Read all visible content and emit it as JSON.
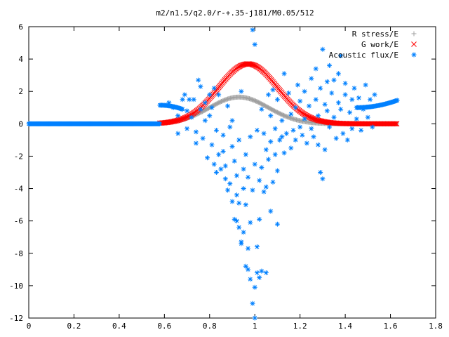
{
  "chart_data": {
    "type": "scatter",
    "title": "m2/n1.5/q2.0/r-+.35-j181/M0.05/512",
    "xlabel": "",
    "ylabel": "",
    "xlim": [
      0,
      1.8
    ],
    "ylim": [
      -12,
      6
    ],
    "xticks": [
      "0",
      "0.2",
      "0.4",
      "0.6",
      "0.8",
      "1",
      "1.2",
      "1.4",
      "1.6",
      "1.8"
    ],
    "yticks": [
      "6",
      "4",
      "2",
      "0",
      "-2",
      "-4",
      "-6",
      "-8",
      "-10",
      "-12"
    ],
    "grid": false,
    "legend_position": "top-right",
    "series": [
      {
        "name": "R stress/E",
        "marker": "plus",
        "color": "#a0a0a0",
        "curve": {
          "kind": "gaussian",
          "x_start": 0.58,
          "x_end": 1.63,
          "step": 0.004,
          "amplitude": 1.65,
          "center": 0.93,
          "sigma": 0.13,
          "baseline": 0.0
        }
      },
      {
        "name": "G work/E",
        "marker": "cross",
        "color": "#ff0000",
        "curve": {
          "kind": "gaussian",
          "x_start": 0.58,
          "x_end": 1.63,
          "step": 0.004,
          "amplitude": 3.7,
          "center": 0.97,
          "sigma": 0.13,
          "baseline": 0.0
        }
      },
      {
        "name": "Acoustic flux/E",
        "marker": "star",
        "color": "#0080ff",
        "segments": [
          {
            "x_start": 0.0,
            "x_end": 0.58,
            "step": 0.003,
            "y": 0.0
          },
          {
            "x_start": 0.58,
            "x_end": 0.68,
            "step": 0.004,
            "y_start": 1.15,
            "y_end": 0.9
          },
          {
            "x_start": 1.45,
            "x_end": 1.63,
            "step": 0.004,
            "y_start": 1.0,
            "y_end": 1.45
          }
        ],
        "points": [
          [
            0.62,
            1.3
          ],
          [
            0.64,
            1.0
          ],
          [
            0.66,
            0.5
          ],
          [
            0.66,
            -0.6
          ],
          [
            0.68,
            1.5
          ],
          [
            0.69,
            1.8
          ],
          [
            0.7,
            0.8
          ],
          [
            0.7,
            -0.3
          ],
          [
            0.71,
            1.5
          ],
          [
            0.72,
            0.4
          ],
          [
            0.73,
            1.5
          ],
          [
            0.74,
            -0.5
          ],
          [
            0.74,
            -1.2
          ],
          [
            0.75,
            2.7
          ],
          [
            0.76,
            0.9
          ],
          [
            0.76,
            2.3
          ],
          [
            0.77,
            -0.9
          ],
          [
            0.78,
            1.3
          ],
          [
            0.78,
            0.2
          ],
          [
            0.79,
            -2.1
          ],
          [
            0.8,
            1.8
          ],
          [
            0.8,
            0.5
          ],
          [
            0.81,
            -1.3
          ],
          [
            0.81,
            1.0
          ],
          [
            0.82,
            -2.5
          ],
          [
            0.82,
            2.2
          ],
          [
            0.83,
            -0.4
          ],
          [
            0.83,
            -3.0
          ],
          [
            0.84,
            1.8
          ],
          [
            0.84,
            -1.9
          ],
          [
            0.85,
            -2.8
          ],
          [
            0.86,
            -0.7
          ],
          [
            0.86,
            -1.7
          ],
          [
            0.87,
            -3.4
          ],
          [
            0.87,
            -2.6
          ],
          [
            0.88,
            -4.1
          ],
          [
            0.88,
            1.1
          ],
          [
            0.89,
            -0.2
          ],
          [
            0.89,
            -3.7
          ],
          [
            0.9,
            -4.8
          ],
          [
            0.9,
            -1.4
          ],
          [
            0.9,
            0.2
          ],
          [
            0.91,
            -5.9
          ],
          [
            0.91,
            -2.3
          ],
          [
            0.92,
            -6.0
          ],
          [
            0.92,
            -3.2
          ],
          [
            0.92,
            -4.4
          ],
          [
            0.93,
            -6.4
          ],
          [
            0.93,
            -1.0
          ],
          [
            0.93,
            -4.9
          ],
          [
            0.94,
            -7.3
          ],
          [
            0.94,
            2.0
          ],
          [
            0.94,
            -7.4
          ],
          [
            0.95,
            -6.7
          ],
          [
            0.95,
            -2.8
          ],
          [
            0.95,
            -4.0
          ],
          [
            0.96,
            -8.8
          ],
          [
            0.96,
            -5.0
          ],
          [
            0.96,
            -1.9
          ],
          [
            0.97,
            -9.0
          ],
          [
            0.97,
            -7.7
          ],
          [
            0.97,
            -3.3
          ],
          [
            0.98,
            -9.6
          ],
          [
            0.98,
            -6.1
          ],
          [
            0.98,
            -0.8
          ],
          [
            0.99,
            5.8
          ],
          [
            0.99,
            -11.1
          ],
          [
            0.99,
            -4.1
          ],
          [
            1.0,
            -12.0
          ],
          [
            1.0,
            4.9
          ],
          [
            1.0,
            -10.1
          ],
          [
            1.0,
            -2.5
          ],
          [
            1.01,
            -9.2
          ],
          [
            1.01,
            -7.6
          ],
          [
            1.01,
            -0.4
          ],
          [
            1.02,
            -9.5
          ],
          [
            1.02,
            -3.5
          ],
          [
            1.02,
            -5.9
          ],
          [
            1.03,
            0.9
          ],
          [
            1.03,
            -9.1
          ],
          [
            1.03,
            -2.7
          ],
          [
            1.04,
            -0.6
          ],
          [
            1.04,
            -4.2
          ],
          [
            1.05,
            -1.6
          ],
          [
            1.05,
            -9.2
          ],
          [
            1.05,
            -3.9
          ],
          [
            1.06,
            1.8
          ],
          [
            1.06,
            -2.2
          ],
          [
            1.07,
            0.5
          ],
          [
            1.07,
            -1.1
          ],
          [
            1.07,
            -5.4
          ],
          [
            1.08,
            -3.6
          ],
          [
            1.08,
            2.1
          ],
          [
            1.09,
            -1.9
          ],
          [
            1.09,
            -0.3
          ],
          [
            1.1,
            -6.2
          ],
          [
            1.1,
            1.5
          ],
          [
            1.1,
            -2.9
          ],
          [
            1.11,
            -1.0
          ],
          [
            1.12,
            -0.8
          ],
          [
            1.12,
            0.2
          ],
          [
            1.13,
            3.1
          ],
          [
            1.13,
            -1.8
          ],
          [
            1.14,
            -0.6
          ],
          [
            1.15,
            1.9
          ],
          [
            1.16,
            -1.5
          ],
          [
            1.16,
            0.6
          ],
          [
            1.17,
            -0.4
          ],
          [
            1.18,
            1.0
          ],
          [
            1.18,
            -1.0
          ],
          [
            1.19,
            2.4
          ],
          [
            1.2,
            -0.2
          ],
          [
            1.2,
            1.4
          ],
          [
            1.21,
            -0.7
          ],
          [
            1.22,
            2.0
          ],
          [
            1.22,
            0.3
          ],
          [
            1.23,
            -1.2
          ],
          [
            1.24,
            1.1
          ],
          [
            1.25,
            -0.3
          ],
          [
            1.25,
            2.8
          ],
          [
            1.26,
            -0.8
          ],
          [
            1.27,
            1.5
          ],
          [
            1.27,
            3.4
          ],
          [
            1.28,
            0.5
          ],
          [
            1.28,
            -1.3
          ],
          [
            1.29,
            2.2
          ],
          [
            1.29,
            -3.0
          ],
          [
            1.3,
            4.6
          ],
          [
            1.3,
            -3.4
          ],
          [
            1.31,
            1.2
          ],
          [
            1.31,
            -1.6
          ],
          [
            1.32,
            2.6
          ],
          [
            1.32,
            0.8
          ],
          [
            1.33,
            3.6
          ],
          [
            1.33,
            -0.2
          ],
          [
            1.34,
            1.9
          ],
          [
            1.35,
            0.4
          ],
          [
            1.35,
            2.7
          ],
          [
            1.36,
            -0.9
          ],
          [
            1.37,
            1.3
          ],
          [
            1.37,
            3.1
          ],
          [
            1.38,
            0.9
          ],
          [
            1.38,
            4.2
          ],
          [
            1.39,
            -0.6
          ],
          [
            1.4,
            1.8
          ],
          [
            1.4,
            2.5
          ],
          [
            1.41,
            -1.0
          ],
          [
            1.42,
            0.7
          ],
          [
            1.43,
            1.5
          ],
          [
            1.43,
            -0.3
          ],
          [
            1.44,
            2.2
          ],
          [
            1.45,
            0.3
          ],
          [
            1.46,
            1.6
          ],
          [
            1.47,
            -0.4
          ],
          [
            1.48,
            0.9
          ],
          [
            1.49,
            2.4
          ],
          [
            1.5,
            0.4
          ],
          [
            1.51,
            1.5
          ],
          [
            1.52,
            -0.2
          ],
          [
            1.53,
            1.8
          ]
        ]
      }
    ]
  }
}
